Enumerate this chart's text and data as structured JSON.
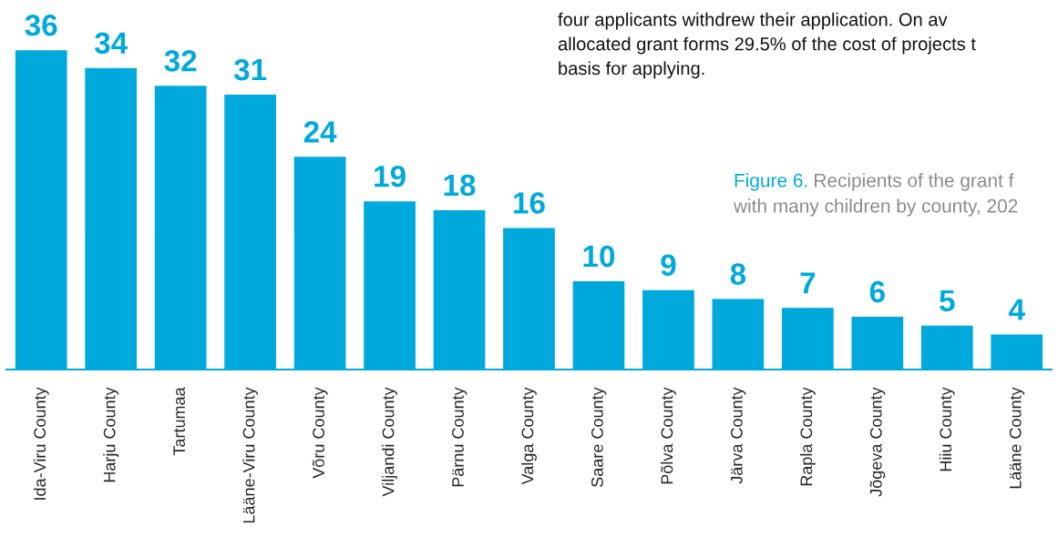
{
  "chart_data": {
    "type": "bar",
    "title": "Figure 6.",
    "subtitle": "Recipients of the grant f\nwith many children by county, 202",
    "annotations": [
      "four applicants withdrew their application. On av\nallocated grant forms 29.5% of the cost of projects t\nbasis for applying."
    ],
    "categories": [
      "Ida-Viru County",
      "Harju County",
      "Tartumaa",
      "Lääne-Viru County",
      "Võru County",
      "Viljandi County",
      "Pärnu County",
      "Valga County",
      "Saare County",
      "Põlva County",
      "Järva County",
      "Rapla County",
      "Jõgeva County",
      "Hiiu County",
      "Lääne County"
    ],
    "values": [
      36,
      34,
      32,
      31,
      24,
      19,
      18,
      16,
      10,
      9,
      8,
      7,
      6,
      5,
      4
    ],
    "color": "#00a9dc",
    "data_labels": true
  }
}
